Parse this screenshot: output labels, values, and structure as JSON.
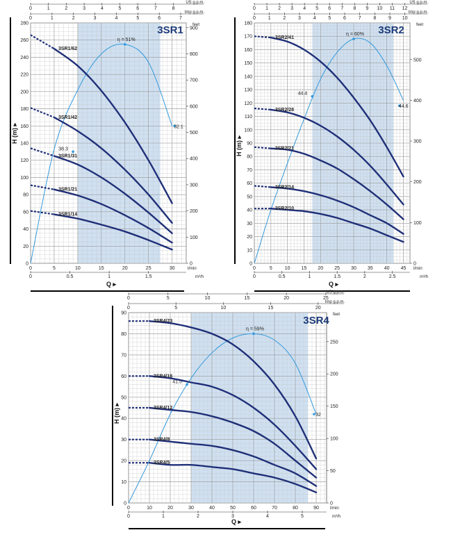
{
  "colors": {
    "curve": "#1f2f78",
    "efficiency": "#3399dd",
    "band": "#cfe0f1",
    "grid": "#c4c4c4"
  },
  "charts": [
    {
      "model": "3SR1",
      "eff_label": "η = 51%",
      "eff_points": [
        "38.3",
        "32.1"
      ],
      "h_ticks": [
        "0",
        "20",
        "40",
        "60",
        "80",
        "100",
        "120",
        "140",
        "160",
        "180",
        "200",
        "220",
        "240",
        "260",
        "280"
      ],
      "feet_ticks": [
        "0",
        "100",
        "200",
        "300",
        "400",
        "500",
        "600",
        "700",
        "800",
        "900"
      ],
      "lmin_ticks": [
        "0",
        "5",
        "10",
        "15",
        "20",
        "25",
        "30"
      ],
      "m3h_ticks": [
        "0",
        "0.5",
        "1",
        "1.5"
      ],
      "us_ticks": [
        "0",
        "1",
        "2",
        "3",
        "4",
        "5",
        "6",
        "7",
        "8"
      ],
      "imp_ticks": [
        "0",
        "1",
        "2",
        "3",
        "4",
        "5",
        "6",
        "7"
      ],
      "labels": {
        "us": "US g.p.m.",
        "imp": "Imp g.p.m.",
        "feet": "feet",
        "lmin": "l/min",
        "m3h": "m³/h",
        "h": "H (m)",
        "q": "Q"
      }
    },
    {
      "model": "3SR2",
      "eff_label": "η = 60%",
      "eff_points": [
        "44.4",
        "44.6"
      ],
      "h_ticks": [
        "0",
        "10",
        "20",
        "30",
        "40",
        "50",
        "60",
        "70",
        "80",
        "90",
        "100",
        "110",
        "120",
        "130",
        "140",
        "150",
        "160",
        "170",
        "180"
      ],
      "feet_ticks": [
        "0",
        "100",
        "200",
        "300",
        "400",
        "500"
      ],
      "lmin_ticks": [
        "0",
        "5",
        "10",
        "15",
        "20",
        "25",
        "30",
        "35",
        "40",
        "45"
      ],
      "m3h_ticks": [
        "0",
        "0.5",
        "1",
        "1.5",
        "2",
        "2.5"
      ],
      "us_ticks": [
        "0",
        "1",
        "2",
        "3",
        "4",
        "5",
        "6",
        "7",
        "8",
        "9",
        "10",
        "11",
        "12"
      ],
      "imp_ticks": [
        "0",
        "1",
        "2",
        "3",
        "4",
        "5",
        "6",
        "7",
        "8",
        "9",
        "10"
      ],
      "labels": {
        "us": "US g.p.m.",
        "imp": "Imp g.p.m.",
        "feet": "feet",
        "lmin": "l/min",
        "m3h": "m³/h",
        "h": "H (m)",
        "q": "Q"
      }
    },
    {
      "model": "3SR4",
      "eff_label": "η = 59%",
      "eff_points": [
        "41.5",
        "32"
      ],
      "h_ticks": [
        "0",
        "10",
        "20",
        "30",
        "40",
        "50",
        "60",
        "70",
        "80",
        "90"
      ],
      "feet_ticks": [
        "0",
        "50",
        "100",
        "150",
        "200",
        "250"
      ],
      "lmin_ticks": [
        "0",
        "10",
        "20",
        "30",
        "40",
        "50",
        "60",
        "70",
        "80",
        "90"
      ],
      "m3h_ticks": [
        "0",
        "1",
        "2",
        "3",
        "4",
        "5"
      ],
      "us_ticks": [
        "0",
        "5",
        "10",
        "15",
        "20",
        "25"
      ],
      "imp_ticks": [
        "0",
        "5",
        "10",
        "15",
        "20"
      ],
      "labels": {
        "us": "US g.p.m.",
        "imp": "Imp g.p.m.",
        "feet": "feet",
        "lmin": "l/min",
        "m3h": "m³/h",
        "h": "H (m)",
        "q": "Q"
      }
    }
  ],
  "chart_data": [
    {
      "type": "line",
      "title": "3SR1",
      "xlabel": "Q (l/min)",
      "ylabel": "H (m)",
      "xlim": [
        0,
        33
      ],
      "ylim": [
        0,
        280
      ],
      "best_efficiency_range_lmin": [
        10,
        27.5
      ],
      "series": [
        {
          "name": "3SR1/62",
          "x": [
            0,
            5,
            10,
            15,
            20,
            25,
            30
          ],
          "y": [
            266,
            250,
            230,
            201,
            164,
            120,
            70
          ]
        },
        {
          "name": "3SR1/42",
          "x": [
            0,
            5,
            10,
            15,
            20,
            25,
            30
          ],
          "y": [
            181,
            170,
            154,
            134,
            109,
            80,
            47
          ]
        },
        {
          "name": "3SR1/31",
          "x": [
            0,
            5,
            10,
            15,
            20,
            25,
            30
          ],
          "y": [
            134,
            125,
            115,
            100,
            81,
            59,
            35
          ]
        },
        {
          "name": "3SR1/21",
          "x": [
            0,
            5,
            10,
            15,
            20,
            25,
            30
          ],
          "y": [
            91,
            86,
            79,
            69,
            56,
            41,
            24
          ]
        },
        {
          "name": "3SR1/14",
          "x": [
            0,
            5,
            10,
            15,
            20,
            25,
            30
          ],
          "y": [
            61,
            57,
            52,
            45,
            37,
            27,
            16
          ]
        },
        {
          "name": "η = 51%",
          "x": [
            0,
            5,
            10,
            15,
            20,
            25,
            30
          ],
          "y": [
            0,
            133,
            202,
            244,
            255,
            234,
            160
          ]
        }
      ]
    },
    {
      "type": "line",
      "title": "3SR2",
      "xlabel": "Q (l/min)",
      "ylabel": "H (m)",
      "xlim": [
        0,
        47
      ],
      "ylim": [
        0,
        180
      ],
      "best_efficiency_range_lmin": [
        17.5,
        42
      ],
      "series": [
        {
          "name": "3SR2/41",
          "x": [
            0,
            5,
            10,
            15,
            20,
            25,
            30,
            35,
            40,
            45
          ],
          "y": [
            170,
            169,
            166,
            160,
            151,
            139,
            124,
            107,
            87,
            65
          ]
        },
        {
          "name": "3SR2/28",
          "x": [
            0,
            5,
            10,
            15,
            20,
            25,
            30,
            35,
            40,
            45
          ],
          "y": [
            116,
            115,
            113,
            109,
            103,
            95,
            85,
            73,
            59,
            44
          ]
        },
        {
          "name": "3SR2/21",
          "x": [
            0,
            5,
            10,
            15,
            20,
            25,
            30,
            35,
            40,
            45
          ],
          "y": [
            87,
            86,
            85,
            82,
            77,
            71,
            63,
            54,
            44,
            33
          ]
        },
        {
          "name": "3SR2/14",
          "x": [
            0,
            5,
            10,
            15,
            20,
            25,
            30,
            35,
            40,
            45
          ],
          "y": [
            58,
            57,
            56,
            54,
            51,
            47,
            42,
            36,
            30,
            22
          ]
        },
        {
          "name": "3SR2/10",
          "x": [
            0,
            5,
            10,
            15,
            20,
            25,
            30,
            35,
            40,
            45
          ],
          "y": [
            41,
            41,
            40,
            39,
            37,
            34,
            30,
            26,
            21,
            16
          ]
        },
        {
          "name": "η = 60%",
          "x": [
            0,
            5,
            10,
            15,
            20,
            25,
            30,
            35,
            40,
            45
          ],
          "y": [
            0,
            40,
            75,
            108,
            138,
            158,
            168,
            165,
            148,
            122
          ]
        }
      ]
    },
    {
      "type": "line",
      "title": "3SR4",
      "xlabel": "Q (l/min)",
      "ylabel": "H (m)",
      "xlim": [
        0,
        95
      ],
      "ylim": [
        0,
        90
      ],
      "best_efficiency_range_lmin": [
        30,
        86
      ],
      "series": [
        {
          "name": "3SR4/23",
          "x": [
            0,
            10,
            20,
            30,
            40,
            50,
            60,
            70,
            80,
            90
          ],
          "y": [
            86,
            86,
            85,
            83,
            80,
            75,
            67,
            56,
            41,
            21
          ]
        },
        {
          "name": "3SR4/16",
          "x": [
            0,
            10,
            20,
            30,
            40,
            50,
            60,
            70,
            80,
            90
          ],
          "y": [
            60,
            60,
            59,
            57,
            55,
            51,
            45,
            37,
            27,
            16
          ]
        },
        {
          "name": "3SR4/12",
          "x": [
            0,
            10,
            20,
            30,
            40,
            50,
            60,
            70,
            80,
            90
          ],
          "y": [
            45,
            45,
            44,
            43,
            41,
            38,
            34,
            28,
            20,
            12
          ]
        },
        {
          "name": "3SR4/8",
          "x": [
            0,
            10,
            20,
            30,
            40,
            50,
            60,
            70,
            80,
            90
          ],
          "y": [
            30,
            30,
            29,
            28,
            27,
            25,
            22,
            18,
            14,
            8
          ]
        },
        {
          "name": "3SR4/5",
          "x": [
            0,
            10,
            20,
            30,
            40,
            50,
            60,
            70,
            80,
            90
          ],
          "y": [
            19,
            19,
            18,
            18,
            17,
            16,
            14,
            12,
            9,
            5
          ]
        },
        {
          "name": "η = 59%",
          "x": [
            0,
            10,
            20,
            30,
            40,
            50,
            60,
            70,
            80,
            90
          ],
          "y": [
            0,
            20,
            42,
            59,
            71,
            78,
            80,
            77,
            66,
            42
          ]
        }
      ]
    }
  ]
}
